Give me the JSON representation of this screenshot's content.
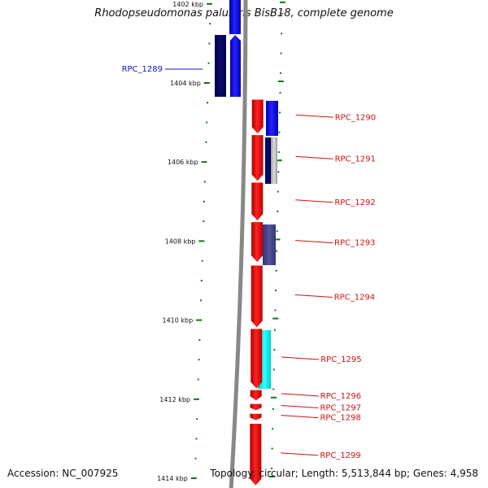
{
  "title": "Rhodopseudomonas palustris BisB18, complete genome",
  "accession_text": "Accession: NC_007925",
  "summary_text": "Topology: circular; Length: 5,513,844 bp; Genes: 4,958",
  "colors": {
    "forward": "#ee1111",
    "reverse": "#1111ee",
    "navy": "#0a0a66",
    "slate": "#444488",
    "cyan": "#11dddd",
    "tick": "#117711",
    "backbone": "#888888",
    "label_blue": "#1111cc",
    "label_red": "#cc1111"
  },
  "kbp_ticks": [
    {
      "label": "1402 kbp",
      "kbp": 1402
    },
    {
      "label": "1404 kbp",
      "kbp": 1404
    },
    {
      "label": "1406 kbp",
      "kbp": 1406
    },
    {
      "label": "1408 kbp",
      "kbp": 1408
    },
    {
      "label": "1410 kbp",
      "kbp": 1410
    },
    {
      "label": "1412 kbp",
      "kbp": 1412
    },
    {
      "label": "1414 kbp",
      "kbp": 1414
    }
  ],
  "genes": [
    {
      "name": "RPC_1289",
      "start_kbp": 1402.9,
      "end_kbp": 1404.33,
      "strand": "-",
      "label_side": "left"
    },
    {
      "name": "RPC_1290",
      "start_kbp": 1404.4,
      "end_kbp": 1405.3,
      "strand": "+",
      "label_side": "right"
    },
    {
      "name": "RPC_1291",
      "start_kbp": 1405.3,
      "end_kbp": 1406.5,
      "strand": "+",
      "label_side": "right"
    },
    {
      "name": "RPC_1292",
      "start_kbp": 1406.5,
      "end_kbp": 1407.5,
      "strand": "+",
      "label_side": "right"
    },
    {
      "name": "RPC_1293",
      "start_kbp": 1407.5,
      "end_kbp": 1408.55,
      "strand": "+",
      "label_side": "right"
    },
    {
      "name": "RPC_1294",
      "start_kbp": 1408.6,
      "end_kbp": 1410.2,
      "strand": "+",
      "label_side": "right"
    },
    {
      "name": "RPC_1295",
      "start_kbp": 1410.2,
      "end_kbp": 1411.75,
      "strand": "+",
      "label_side": "right"
    },
    {
      "name": "RPC_1296",
      "start_kbp": 1411.75,
      "end_kbp": 1412.05,
      "strand": "+",
      "label_side": "right"
    },
    {
      "name": "RPC_1297",
      "start_kbp": 1412.1,
      "end_kbp": 1412.3,
      "strand": "+",
      "label_side": "right"
    },
    {
      "name": "RPC_1298",
      "start_kbp": 1412.35,
      "end_kbp": 1412.55,
      "strand": "+",
      "label_side": "right"
    },
    {
      "name": "RPC_1299",
      "start_kbp": 1412.6,
      "end_kbp": 1414.2,
      "strand": "+",
      "label_side": "right"
    }
  ]
}
